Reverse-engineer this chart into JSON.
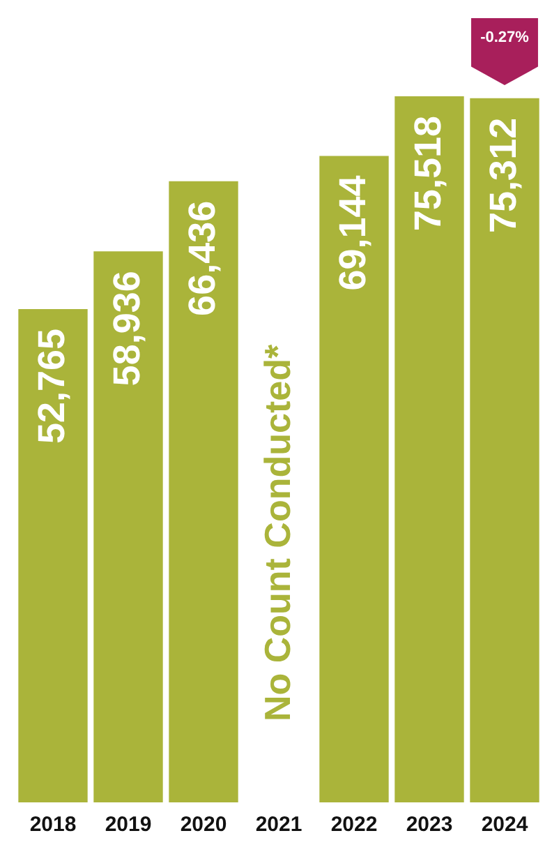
{
  "chart_data": {
    "type": "bar",
    "categories": [
      "2018",
      "2019",
      "2020",
      "2021",
      "2022",
      "2023",
      "2024"
    ],
    "values": [
      52765,
      58936,
      66436,
      null,
      69144,
      75518,
      75312
    ],
    "color": "#aab43a",
    "value_labels": [
      "52,765",
      "58,936",
      "66,436",
      null,
      "69,144",
      "75,518",
      "75,312"
    ],
    "annotations": [
      "No Count Conducted*",
      "-0.27%"
    ]
  }
}
